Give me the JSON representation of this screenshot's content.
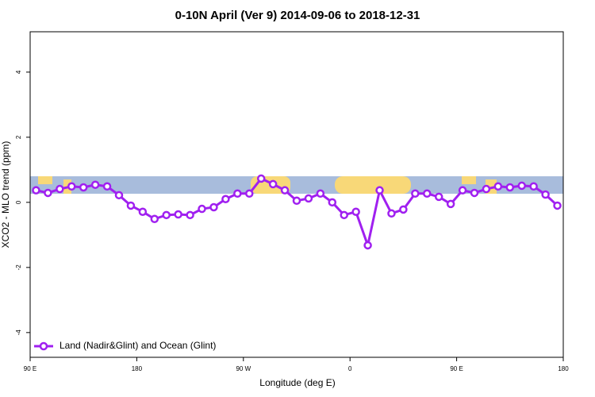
{
  "chart_data": {
    "type": "line",
    "title": "0-10N April (Ver 9)   2014-09-06 to 2018-12-31",
    "xlabel": "Longitude (deg E)",
    "ylabel": "XCO2 - MLO trend (ppm)",
    "x": [
      95,
      105,
      115,
      125,
      135,
      145,
      155,
      165,
      175,
      185,
      195,
      205,
      215,
      225,
      235,
      245,
      255,
      265,
      275,
      285,
      295,
      305,
      315,
      325,
      335,
      345,
      355,
      365,
      375,
      385,
      395,
      405,
      415,
      425,
      435,
      445,
      455,
      465,
      475,
      485,
      495,
      505,
      515,
      525,
      535
    ],
    "series": [
      {
        "name": "Land (Nadir&Glint) and Ocean (Glint)",
        "color": "#a020f0",
        "values": [
          0.37,
          0.29,
          0.41,
          0.49,
          0.46,
          0.54,
          0.49,
          0.22,
          -0.1,
          -0.29,
          -0.51,
          -0.39,
          -0.37,
          -0.39,
          -0.2,
          -0.15,
          0.1,
          0.27,
          0.27,
          0.73,
          0.56,
          0.37,
          0.05,
          0.12,
          0.27,
          0.0,
          -0.39,
          -0.29,
          -1.32,
          0.37,
          -0.34,
          -0.22,
          0.27,
          0.27,
          0.17,
          -0.05,
          0.37,
          0.29,
          0.41,
          0.49,
          0.46,
          0.51,
          0.49,
          0.24,
          -0.1
        ]
      }
    ],
    "xlim": [
      90,
      540
    ],
    "xticks": [
      {
        "value": 90,
        "label": "90 E"
      },
      {
        "value": 180,
        "label": "180"
      },
      {
        "value": 270,
        "label": "90 W"
      },
      {
        "value": 360,
        "label": "0"
      },
      {
        "value": 450,
        "label": "90 E"
      },
      {
        "value": 540,
        "label": "180"
      }
    ],
    "ylim": [
      -4.76,
      5.24
    ],
    "yticks": [
      -4,
      -2,
      0,
      2,
      4
    ],
    "legend": "bottom-left"
  }
}
